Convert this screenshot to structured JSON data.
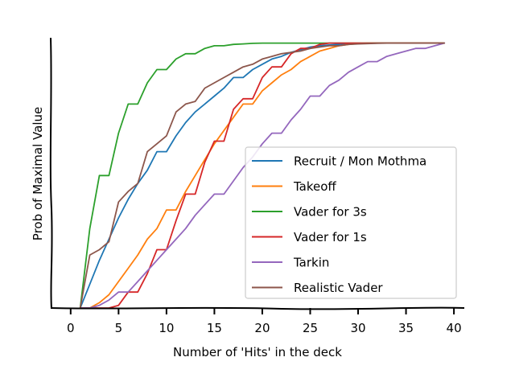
{
  "chart_data": {
    "type": "line",
    "title": "",
    "xlabel": "Number of 'Hits' in the deck",
    "ylabel": "Prob of Maximal Value",
    "xlim": [
      -2,
      41
    ],
    "ylim": [
      0,
      1.02
    ],
    "xticks": [
      0,
      5,
      10,
      15,
      20,
      25,
      30,
      35,
      40
    ],
    "grid": false,
    "legend_position": "center-right",
    "series": [
      {
        "name": "Recruit / Mon Mothma",
        "color": "#1f77b4",
        "x": [
          1,
          2,
          3,
          4,
          5,
          6,
          7,
          8,
          9,
          10,
          11,
          12,
          13,
          14,
          15,
          16,
          17,
          18,
          19,
          20,
          21,
          22,
          23,
          24,
          25,
          26,
          27,
          28,
          29,
          30,
          31,
          32,
          33,
          34,
          35,
          36,
          37,
          38,
          39
        ],
        "y": [
          0,
          0.09,
          0.18,
          0.26,
          0.34,
          0.41,
          0.47,
          0.52,
          0.59,
          0.59,
          0.65,
          0.7,
          0.74,
          0.77,
          0.8,
          0.83,
          0.87,
          0.87,
          0.9,
          0.92,
          0.94,
          0.95,
          0.965,
          0.975,
          0.985,
          0.99,
          0.993,
          0.995,
          0.997,
          0.998,
          0.999,
          1,
          1,
          1,
          1,
          1,
          1,
          1,
          1
        ]
      },
      {
        "name": "Takeoff",
        "color": "#ff7f0e",
        "x": [
          1,
          2,
          3,
          4,
          5,
          6,
          7,
          8,
          9,
          10,
          11,
          12,
          13,
          14,
          15,
          16,
          17,
          18,
          19,
          20,
          21,
          22,
          23,
          24,
          25,
          26,
          27,
          28,
          29,
          30,
          31,
          32,
          33,
          34,
          35,
          36,
          37,
          38,
          39
        ],
        "y": [
          0,
          0,
          0.02,
          0.05,
          0.1,
          0.15,
          0.2,
          0.26,
          0.3,
          0.37,
          0.37,
          0.44,
          0.5,
          0.56,
          0.62,
          0.67,
          0.72,
          0.77,
          0.77,
          0.82,
          0.85,
          0.88,
          0.9,
          0.93,
          0.95,
          0.97,
          0.98,
          0.99,
          0.995,
          0.998,
          1,
          1,
          1,
          1,
          1,
          1,
          1,
          1,
          1
        ]
      },
      {
        "name": "Vader for 3s",
        "color": "#2ca02c",
        "x": [
          1,
          2,
          3,
          4,
          5,
          6,
          7,
          8,
          9,
          10,
          11,
          12,
          13,
          14,
          15,
          16,
          17,
          18,
          19,
          20,
          21,
          22,
          23,
          24,
          25,
          26,
          27,
          28,
          29,
          30,
          31,
          32,
          33,
          34,
          35,
          36,
          37,
          38,
          39
        ],
        "y": [
          0,
          0.3,
          0.5,
          0.5,
          0.66,
          0.77,
          0.77,
          0.85,
          0.9,
          0.9,
          0.94,
          0.96,
          0.96,
          0.98,
          0.99,
          0.99,
          0.995,
          0.997,
          0.999,
          1,
          1,
          1,
          1,
          1,
          1,
          1,
          1,
          1,
          1,
          1,
          1,
          1,
          1,
          1,
          1,
          1,
          1,
          1,
          1
        ]
      },
      {
        "name": "Vader for 1s",
        "color": "#d62728",
        "x": [
          1,
          2,
          3,
          4,
          5,
          6,
          7,
          8,
          9,
          10,
          11,
          12,
          13,
          14,
          15,
          16,
          17,
          18,
          19,
          20,
          21,
          22,
          23,
          24,
          25,
          26,
          27,
          28,
          29,
          30,
          31,
          32,
          33,
          34,
          35,
          36,
          37,
          38,
          39
        ],
        "y": [
          0,
          0,
          0,
          0,
          0.01,
          0.06,
          0.06,
          0.13,
          0.22,
          0.22,
          0.33,
          0.43,
          0.43,
          0.55,
          0.63,
          0.63,
          0.75,
          0.79,
          0.79,
          0.87,
          0.91,
          0.91,
          0.96,
          0.98,
          0.98,
          0.995,
          1,
          1,
          1,
          1,
          1,
          1,
          1,
          1,
          1,
          1,
          1,
          1,
          1
        ]
      },
      {
        "name": "Tarkin",
        "color": "#9467bd",
        "x": [
          1,
          2,
          3,
          4,
          5,
          6,
          7,
          8,
          9,
          10,
          11,
          12,
          13,
          14,
          15,
          16,
          17,
          18,
          19,
          20,
          21,
          22,
          23,
          24,
          25,
          26,
          27,
          28,
          29,
          30,
          31,
          32,
          33,
          34,
          35,
          36,
          37,
          38,
          39
        ],
        "y": [
          0,
          0,
          0.01,
          0.03,
          0.06,
          0.06,
          0.1,
          0.14,
          0.18,
          0.22,
          0.26,
          0.3,
          0.35,
          0.39,
          0.43,
          0.43,
          0.48,
          0.53,
          0.57,
          0.62,
          0.66,
          0.66,
          0.71,
          0.75,
          0.8,
          0.8,
          0.84,
          0.86,
          0.89,
          0.91,
          0.93,
          0.93,
          0.95,
          0.96,
          0.97,
          0.98,
          0.98,
          0.99,
          1
        ]
      },
      {
        "name": "Realistic Vader",
        "color": "#8c564b",
        "x": [
          1,
          2,
          3,
          4,
          5,
          6,
          7,
          8,
          9,
          10,
          11,
          12,
          13,
          14,
          15,
          16,
          17,
          18,
          19,
          20,
          21,
          22,
          23,
          24,
          25,
          26,
          27,
          28,
          29,
          30,
          31,
          32,
          33,
          34,
          35,
          36,
          37,
          38,
          39
        ],
        "y": [
          0,
          0.2,
          0.22,
          0.25,
          0.4,
          0.44,
          0.47,
          0.59,
          0.62,
          0.65,
          0.74,
          0.77,
          0.78,
          0.83,
          0.85,
          0.87,
          0.89,
          0.91,
          0.92,
          0.94,
          0.95,
          0.96,
          0.965,
          0.97,
          0.98,
          0.985,
          0.99,
          0.99,
          0.995,
          0.997,
          0.998,
          0.999,
          1,
          1,
          1,
          1,
          1,
          1,
          1
        ]
      }
    ]
  }
}
